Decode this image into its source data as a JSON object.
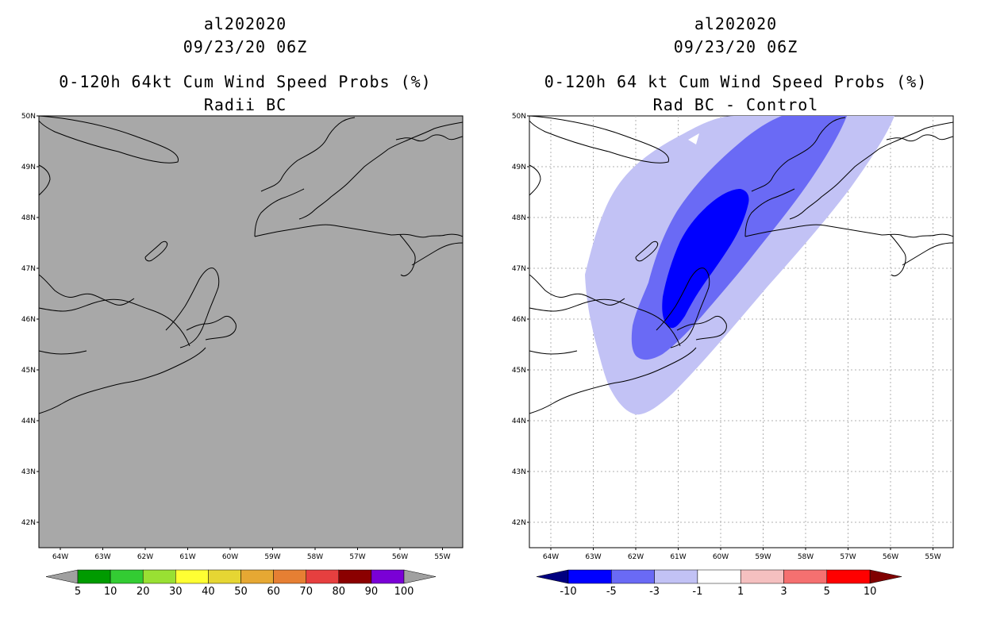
{
  "left_panel": {
    "storm_id": "al202020",
    "datetime": "09/23/20 06Z",
    "product": "0-120h 64kt Cum Wind Speed Probs (%)",
    "subtitle": "Radii BC",
    "colorbar": {
      "labels": [
        "5",
        "10",
        "20",
        "30",
        "40",
        "50",
        "60",
        "70",
        "80",
        "90",
        "100"
      ],
      "colors": [
        "#a0a0a0",
        "#009b00",
        "#33cc33",
        "#99e033",
        "#ffff33",
        "#e6d633",
        "#e6a833",
        "#e67f33",
        "#e63f3f",
        "#8b0000",
        "#7a00d6",
        "#a0a0a0"
      ]
    }
  },
  "right_panel": {
    "storm_id": "al202020",
    "datetime": "09/23/20 06Z",
    "product": "0-120h 64 kt Cum Wind Speed Probs (%)",
    "subtitle": "Rad BC - Control",
    "colorbar": {
      "labels": [
        "-10",
        "-5",
        "-3",
        "-1",
        "1",
        "3",
        "5",
        "10"
      ],
      "colors": [
        "#000080",
        "#0000ff",
        "#6a6af5",
        "#c2c2f5",
        "#ffffff",
        "#f5c0c0",
        "#f57070",
        "#ff0000",
        "#800000"
      ]
    }
  },
  "axes": {
    "lat_labels": [
      "50N",
      "49N",
      "48N",
      "47N",
      "46N",
      "45N",
      "44N",
      "43N",
      "42N"
    ],
    "lon_labels": [
      "64W",
      "63W",
      "62W",
      "61W",
      "60W",
      "59W",
      "58W",
      "57W",
      "56W",
      "55W"
    ]
  },
  "colors": {
    "land_bg_left": "#a8a8a8",
    "contour_light": "#c2c2f5",
    "contour_mid": "#6a6af5",
    "contour_dark": "#0000ff"
  }
}
